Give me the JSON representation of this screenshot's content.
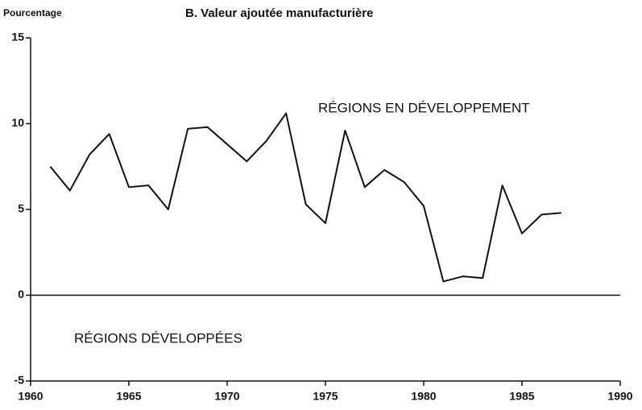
{
  "chart_data": {
    "type": "line",
    "title": "B.  Valeur ajoutée manufacturière",
    "y_label": "Pourcentage",
    "x": [
      1961,
      1962,
      1963,
      1964,
      1965,
      1966,
      1967,
      1968,
      1969,
      1970,
      1971,
      1972,
      1973,
      1974,
      1975,
      1976,
      1977,
      1978,
      1979,
      1980,
      1981,
      1982,
      1983,
      1984,
      1985,
      1986,
      1987
    ],
    "series": [
      {
        "name": "RÉGIONS EN DÉVELOPPEMENT",
        "color": "#111111",
        "values": [
          7.5,
          6.1,
          8.2,
          9.4,
          6.3,
          6.4,
          5.0,
          9.7,
          9.8,
          8.8,
          7.8,
          9.0,
          10.6,
          5.3,
          4.2,
          9.6,
          6.3,
          7.3,
          6.6,
          5.2,
          0.8,
          1.1,
          1.0,
          6.4,
          3.6,
          4.7,
          4.8
        ]
      }
    ],
    "annotations": [
      "RÉGIONS DÉVELOPPÉES"
    ],
    "xlim": [
      1960,
      1990
    ],
    "xticks": [
      1960,
      1965,
      1970,
      1975,
      1980,
      1985,
      1990
    ],
    "ylim": [
      -5,
      15
    ],
    "yticks": [
      -5,
      0,
      5,
      10,
      15
    ]
  }
}
